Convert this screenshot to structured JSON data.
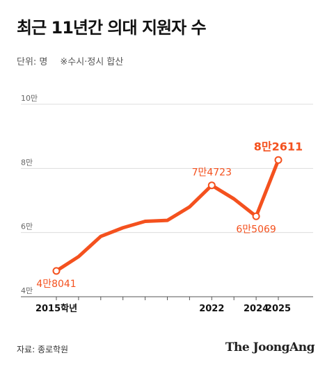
{
  "header": {
    "title": "최근 11년간 의대 지원자 수",
    "unit": "단위: 명",
    "note": "※수시·정시 합산"
  },
  "footer": {
    "source": "자료: 종로학원",
    "brand": "The JoongAng"
  },
  "colors": {
    "line": "#f4511e",
    "accent_text": "#f4511e",
    "grid": "#dddddd",
    "axis": "#555555"
  },
  "chart_data": {
    "type": "line",
    "title": "최근 11년간 의대 지원자 수",
    "ylabel": "",
    "xlabel": "",
    "ylim": [
      40000,
      100000
    ],
    "yticks": [
      {
        "value": 40000,
        "label": "4만"
      },
      {
        "value": 60000,
        "label": "6만"
      },
      {
        "value": 80000,
        "label": "8만"
      },
      {
        "value": 100000,
        "label": "10만"
      }
    ],
    "x": [
      2015,
      2016,
      2017,
      2018,
      2019,
      2020,
      2021,
      2022,
      2023,
      2024,
      2025
    ],
    "values": [
      48041,
      52500,
      58800,
      61500,
      63500,
      63800,
      68000,
      74723,
      70500,
      65069,
      82611
    ],
    "xtick_labels": [
      {
        "x": 2015,
        "label": "2015학년"
      },
      {
        "x": 2022,
        "label": "2022"
      },
      {
        "x": 2024,
        "label": "2024"
      },
      {
        "x": 2025,
        "label": "2025"
      }
    ],
    "annotations": [
      {
        "x": 2015,
        "value": 48041,
        "label": "4만8041",
        "position": "below"
      },
      {
        "x": 2022,
        "value": 74723,
        "label": "7만4723",
        "position": "above"
      },
      {
        "x": 2024,
        "value": 65069,
        "label": "6만5069",
        "position": "below"
      },
      {
        "x": 2025,
        "value": 82611,
        "label": "8만2611",
        "position": "above",
        "emphasis": true
      }
    ],
    "grid": true
  }
}
